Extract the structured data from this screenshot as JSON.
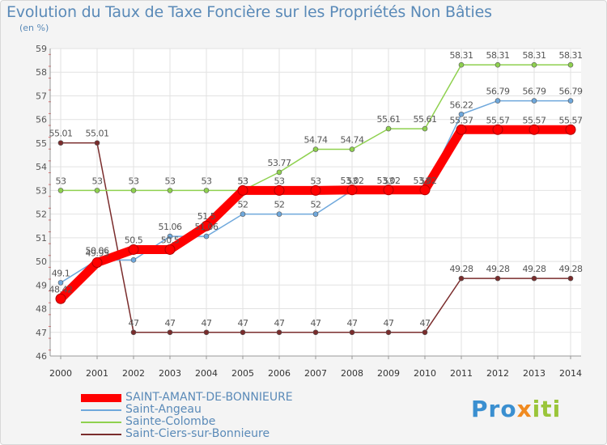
{
  "chart_data": {
    "type": "line",
    "title": "Evolution du Taux de Taxe Foncière sur les Propriétés Non Bâties",
    "subtitle": "(en %)",
    "x": [
      "2000",
      "2001",
      "2002",
      "2003",
      "2004",
      "2005",
      "2006",
      "2007",
      "2008",
      "2009",
      "2010",
      "2011",
      "2012",
      "2013",
      "2014"
    ],
    "yticks": [
      "46",
      "47",
      "48",
      "49",
      "50",
      "51",
      "52",
      "53",
      "54",
      "55",
      "56",
      "57",
      "58",
      "59"
    ],
    "ylim": [
      46,
      59
    ],
    "grid": true,
    "legend_position": "bottom-left",
    "series": [
      {
        "name": "SAINT-AMANT-DE-BONNIEURE",
        "color": "#ff0000",
        "values": [
          48.42,
          49.95,
          50.5,
          50.5,
          51.5,
          53,
          53,
          53,
          53.02,
          53.02,
          53.02,
          55.57,
          55.57,
          55.57,
          55.57
        ],
        "labels": [
          "48.42",
          "49.95",
          "50.5",
          "50.5",
          "51.5",
          "53",
          "53",
          "53",
          "53.02",
          "53.02",
          "53.02",
          "55.57",
          "55.57",
          "55.57",
          "55.57"
        ]
      },
      {
        "name": "Saint-Angeau",
        "color": "#6fa8dc",
        "values": [
          49.1,
          50.06,
          50.06,
          51.06,
          51.06,
          52,
          52,
          52,
          53,
          53,
          53,
          56.22,
          56.79,
          56.79,
          56.79
        ],
        "labels": [
          "49.1",
          "50.06",
          "",
          "51.06",
          "51.06",
          "52",
          "52",
          "52",
          "53",
          "53",
          "53",
          "56.22",
          "56.79",
          "56.79",
          "56.79"
        ]
      },
      {
        "name": "Sainte-Colombe",
        "color": "#8fd14f",
        "values": [
          53,
          53,
          53,
          53,
          53,
          53,
          53.77,
          54.74,
          54.74,
          55.61,
          55.61,
          58.31,
          58.31,
          58.31,
          58.31
        ],
        "labels": [
          "53",
          "53",
          "53",
          "53",
          "53",
          "53",
          "53.77",
          "54.74",
          "54.74",
          "55.61",
          "55.61",
          "58.31",
          "58.31",
          "58.31",
          "58.31"
        ]
      },
      {
        "name": "Saint-Ciers-sur-Bonnieure",
        "color": "#7a2c2c",
        "values": [
          55.01,
          55.01,
          47,
          47,
          47,
          47,
          47,
          47,
          47,
          47,
          47,
          49.28,
          49.28,
          49.28,
          49.28
        ],
        "labels": [
          "55.01",
          "55.01",
          "47",
          "47",
          "47",
          "47",
          "47",
          "47",
          "47",
          "47",
          "47",
          "49.28",
          "49.28",
          "49.28",
          "49.28"
        ]
      }
    ]
  },
  "logo": {
    "part1": "Pro",
    "part2": "x",
    "part3": "iti"
  }
}
